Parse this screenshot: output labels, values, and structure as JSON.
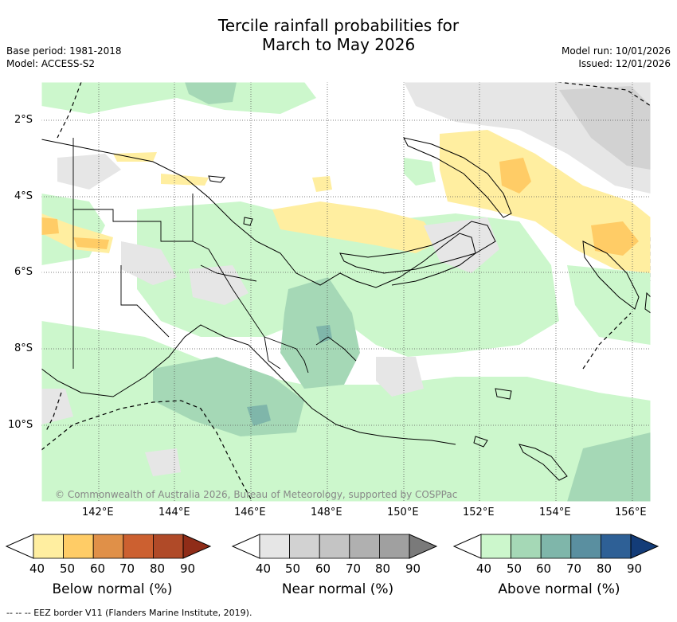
{
  "title": {
    "line1": "Tercile rainfall probabilities for",
    "line2": "March to May 2026"
  },
  "meta": {
    "base_period": "Base period: 1981-2018",
    "model": "Model: ACCESS-S2",
    "model_run": "Model run: 10/01/2026",
    "issued": "Issued: 12/01/2026"
  },
  "map": {
    "lat_labels": [
      "2°S",
      "4°S",
      "6°S",
      "8°S",
      "10°S"
    ],
    "lon_labels": [
      "142°E",
      "144°E",
      "146°E",
      "148°E",
      "150°E",
      "152°E",
      "154°E",
      "156°E"
    ],
    "copyright": "© Commonwealth of Australia 2026, Bureau of Meteorology, supported by COSPPac"
  },
  "colorbars": [
    {
      "name": "below",
      "label": "Below normal (%)",
      "ticks": [
        "40",
        "50",
        "60",
        "70",
        "80",
        "90"
      ],
      "colors": [
        "#ffffff",
        "#ffeea0",
        "#ffcc66",
        "#e09048",
        "#cc6030",
        "#b04a28",
        "#8f2c18"
      ]
    },
    {
      "name": "near",
      "label": "Near normal (%)",
      "ticks": [
        "40",
        "50",
        "60",
        "70",
        "80",
        "90"
      ],
      "colors": [
        "#ffffff",
        "#e6e6e6",
        "#d2d2d2",
        "#c4c4c4",
        "#b0b0b0",
        "#a0a0a0",
        "#7a7a7a"
      ]
    },
    {
      "name": "above",
      "label": "Above normal (%)",
      "ticks": [
        "40",
        "50",
        "60",
        "70",
        "80",
        "90"
      ],
      "colors": [
        "#ffffff",
        "#ccf7cc",
        "#a5d8b6",
        "#7fb6aa",
        "#5a8fa0",
        "#2e6096",
        "#133c78"
      ]
    }
  ],
  "footer": "--  --  -- EEZ border V11 (Flanders Marine Institute, 2019)."
}
